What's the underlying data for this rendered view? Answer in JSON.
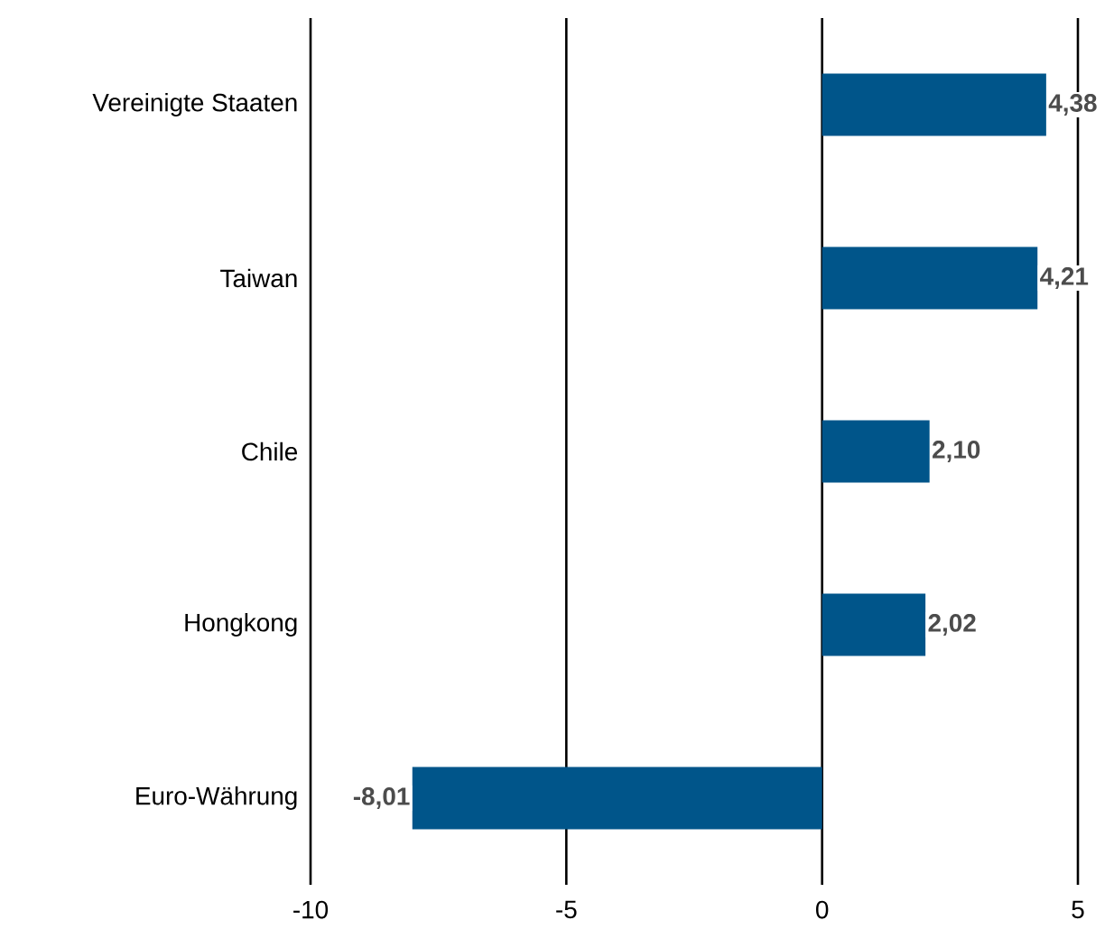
{
  "chart_data": {
    "type": "bar",
    "orientation": "horizontal",
    "categories": [
      "Vereinigte Staaten",
      "Taiwan",
      "Chile",
      "Hongkong",
      "Euro-Währung"
    ],
    "values": [
      4.38,
      4.21,
      2.1,
      2.02,
      -8.01
    ],
    "value_labels": [
      "4,38",
      "4,21",
      "2,10",
      "2,02",
      "-8,01"
    ],
    "color": "#00558a",
    "xlim": [
      -10,
      5
    ],
    "xticks": [
      -10,
      -5,
      0,
      5
    ],
    "grid": "x"
  }
}
